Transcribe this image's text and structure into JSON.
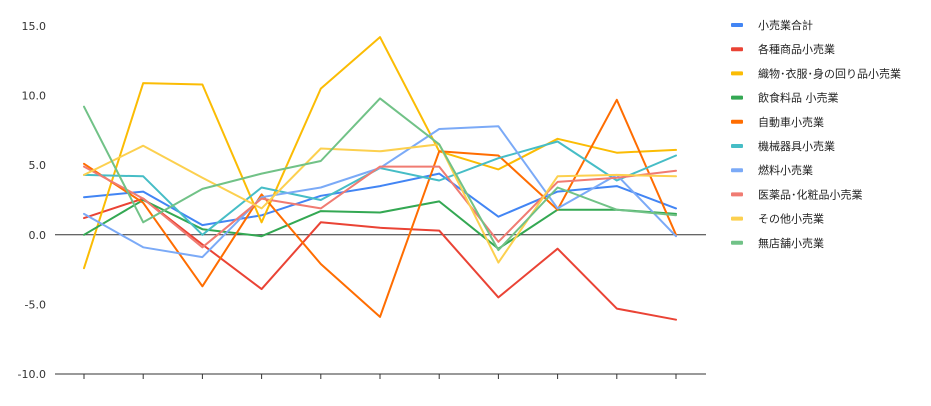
{
  "chart_data": {
    "type": "line",
    "title": "",
    "xlabel": "",
    "ylabel": "",
    "ylim": [
      -10,
      15
    ],
    "yticks": [
      "15.0",
      "10.0",
      "5.0",
      "0.0",
      "-5.0",
      "-10.0"
    ],
    "ytick_values": [
      15,
      10,
      5,
      0,
      -5,
      -10
    ],
    "x": [
      1,
      2,
      3,
      4,
      5,
      6,
      7,
      8,
      9,
      10,
      11
    ],
    "grid": false,
    "legend_position": "right",
    "series": [
      {
        "name": "小売業合計",
        "color": "#4285F4",
        "values": [
          2.7,
          3.1,
          0.7,
          1.4,
          2.8,
          3.5,
          4.4,
          1.3,
          3.1,
          3.5,
          1.9
        ]
      },
      {
        "name": "各種商品小売業",
        "color": "#EA4335",
        "values": [
          1.2,
          2.6,
          -0.7,
          -3.9,
          0.9,
          0.5,
          0.3,
          -4.5,
          -1.0,
          -5.3,
          -6.1
        ]
      },
      {
        "name": "織物･衣服･身の回り品小売業",
        "color": "#FBBC04",
        "values": [
          -2.4,
          10.9,
          10.8,
          0.9,
          10.5,
          14.2,
          6.0,
          4.7,
          6.9,
          5.9,
          6.1
        ]
      },
      {
        "name": "飲食料品 小売業",
        "color": "#34A853",
        "values": [
          0.0,
          2.5,
          0.4,
          -0.1,
          1.7,
          1.6,
          2.4,
          -1.0,
          1.8,
          1.8,
          1.5
        ]
      },
      {
        "name": "自動車小売業",
        "color": "#FF6D01",
        "values": [
          5.1,
          2.3,
          -3.7,
          2.9,
          -2.1,
          -5.9,
          6.0,
          5.7,
          1.8,
          9.7,
          0.0
        ]
      },
      {
        "name": "機械器具小売業",
        "color": "#46BDC6",
        "values": [
          4.3,
          4.2,
          0.0,
          3.4,
          2.5,
          4.8,
          3.9,
          5.5,
          6.7,
          3.9,
          5.7
        ]
      },
      {
        "name": "燃料小売業",
        "color": "#7BAAF7",
        "values": [
          1.5,
          -0.9,
          -1.6,
          2.7,
          3.4,
          4.8,
          7.6,
          7.8,
          1.9,
          4.3,
          -0.1
        ]
      },
      {
        "name": "医薬品･化粧品小売業",
        "color": "#F07B72",
        "values": [
          4.9,
          2.6,
          -0.9,
          2.6,
          1.9,
          4.9,
          4.9,
          -0.5,
          3.8,
          4.1,
          4.6
        ]
      },
      {
        "name": "その他小売業",
        "color": "#FCD04F",
        "values": [
          4.3,
          6.4,
          4.1,
          1.9,
          6.2,
          6.0,
          6.5,
          -2.0,
          4.2,
          4.3,
          4.2
        ]
      },
      {
        "name": "無店舗小売業",
        "color": "#71C287",
        "values": [
          9.2,
          0.9,
          3.3,
          4.4,
          5.3,
          9.8,
          6.5,
          -1.1,
          3.4,
          1.8,
          1.4
        ]
      }
    ]
  }
}
